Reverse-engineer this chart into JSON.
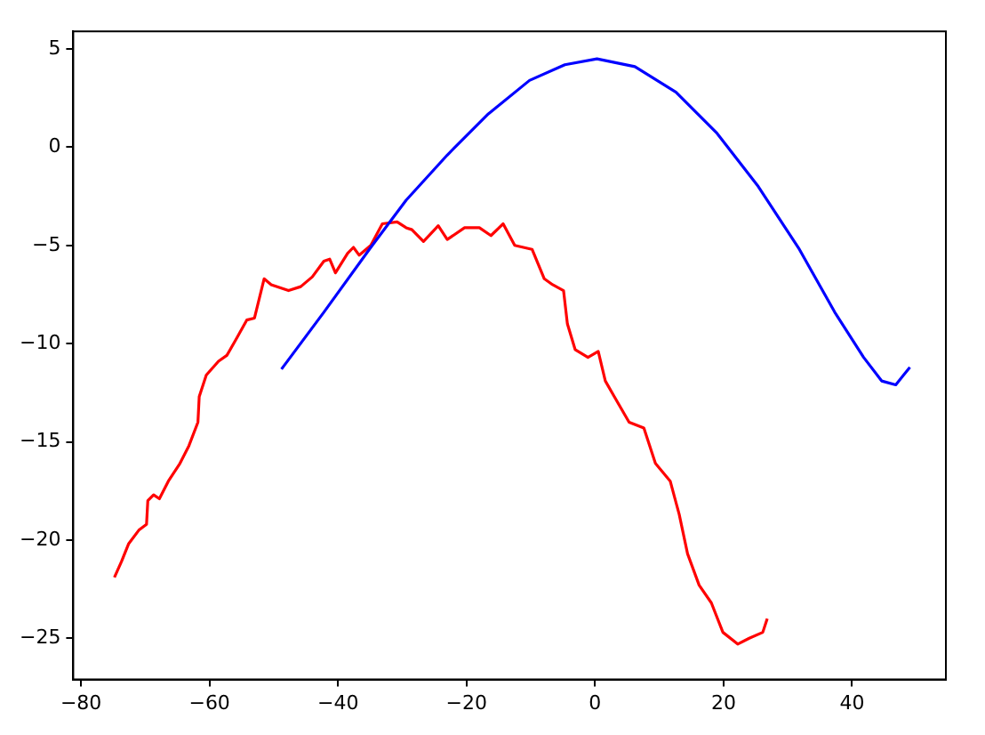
{
  "chart_data": {
    "type": "line",
    "xlim": [
      -81.2,
      54.6
    ],
    "ylim": [
      -27.1,
      5.9
    ],
    "xticks": [
      -80,
      -60,
      -40,
      -20,
      0,
      20,
      40
    ],
    "yticks": [
      -25,
      -20,
      -15,
      -10,
      -5,
      0,
      5
    ],
    "grid": false,
    "legend": false,
    "marker": "none",
    "line_style": "solid",
    "series": [
      {
        "color": "#0000ff",
        "x": [
          -48.8,
          -42.2,
          -34.9,
          -29.4,
          -23.0,
          -16.6,
          -10.2,
          -4.7,
          0.3,
          6.2,
          12.6,
          19.0,
          25.4,
          31.8,
          37.3,
          41.8,
          44.6,
          46.8,
          49.0
        ],
        "values": [
          -11.3,
          -8.4,
          -5.1,
          -2.7,
          -0.4,
          1.7,
          3.4,
          4.2,
          4.5,
          4.1,
          2.8,
          0.7,
          -2.0,
          -5.2,
          -8.4,
          -10.7,
          -11.9,
          -12.1,
          -11.2
        ]
      },
      {
        "color": "#ff0000",
        "x": [
          -74.8,
          -73.7,
          -72.6,
          -71.0,
          -69.8,
          -69.6,
          -68.7,
          -67.8,
          -66.4,
          -64.6,
          -63.2,
          -61.8,
          -61.6,
          -60.5,
          -58.6,
          -57.3,
          -55.9,
          -54.2,
          -53.0,
          -51.5,
          -50.4,
          -47.7,
          -45.8,
          -44.0,
          -42.2,
          -41.3,
          -40.4,
          -38.5,
          -37.6,
          -36.7,
          -34.9,
          -33.1,
          -30.8,
          -29.4,
          -28.5,
          -26.7,
          -24.4,
          -23.0,
          -20.3,
          -18.0,
          -16.2,
          -14.3,
          -12.5,
          -9.8,
          -7.9,
          -6.6,
          -4.9,
          -4.3,
          -3.1,
          -1.1,
          0.5,
          1.6,
          3.0,
          5.3,
          7.6,
          9.4,
          11.7,
          13.1,
          14.4,
          16.2,
          18.1,
          19.9,
          22.2,
          24.0,
          26.1,
          26.8
        ],
        "values": [
          -21.9,
          -21.1,
          -20.2,
          -19.5,
          -19.2,
          -18.0,
          -17.7,
          -17.9,
          -17.0,
          -16.1,
          -15.2,
          -14.0,
          -12.7,
          -11.6,
          -10.9,
          -10.6,
          -9.8,
          -8.8,
          -8.7,
          -6.7,
          -7.0,
          -7.3,
          -7.1,
          -6.6,
          -5.8,
          -5.7,
          -6.4,
          -5.4,
          -5.1,
          -5.5,
          -5.0,
          -3.9,
          -3.8,
          -4.1,
          -4.2,
          -4.8,
          -4.0,
          -4.7,
          -4.1,
          -4.1,
          -4.5,
          -3.9,
          -5.0,
          -5.2,
          -6.7,
          -7.0,
          -7.3,
          -9.0,
          -10.3,
          -10.7,
          -10.4,
          -11.9,
          -12.7,
          -14.0,
          -14.3,
          -16.1,
          -17.0,
          -18.7,
          -20.7,
          -22.3,
          -23.2,
          -24.7,
          -25.3,
          -25.0,
          -24.7,
          -24.0
        ]
      }
    ]
  }
}
